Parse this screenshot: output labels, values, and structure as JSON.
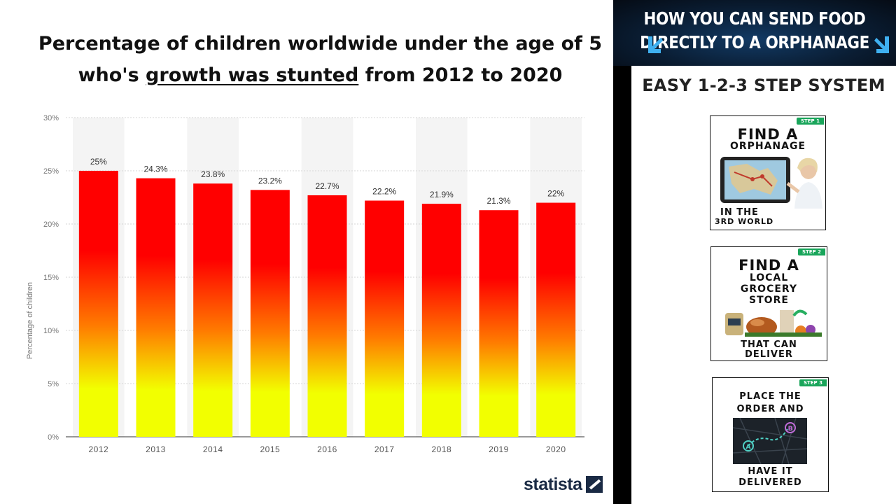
{
  "chart_data": {
    "type": "bar",
    "title_parts": [
      {
        "text": "Percentage of children worldwide under the age of 5",
        "underline": false,
        "br": true
      },
      {
        "text": "who's ",
        "underline": false
      },
      {
        "text": "growth was stunted",
        "underline": true
      },
      {
        "text": " from 2012 to 2020",
        "underline": false
      }
    ],
    "categories": [
      "2012",
      "2013",
      "2014",
      "2015",
      "2016",
      "2017",
      "2018",
      "2019",
      "2020"
    ],
    "values": [
      25,
      24.3,
      23.8,
      23.2,
      22.7,
      22.2,
      21.9,
      21.3,
      22
    ],
    "data_labels": [
      "25%",
      "24.3%",
      "23.8%",
      "23.2%",
      "22.7%",
      "22.2%",
      "21.9%",
      "21.3%",
      "22%"
    ],
    "ylabel": "Percentage of children",
    "xlabel": "",
    "ylim": [
      0,
      30
    ],
    "yticks": [
      0,
      5,
      10,
      15,
      20,
      25,
      30
    ],
    "ytick_labels": [
      "0%",
      "5%",
      "10%",
      "15%",
      "20%",
      "25%",
      "30%"
    ],
    "grid": true,
    "bar_gradient": {
      "top": "#ff0000",
      "middle": "#ff7a00",
      "bottom": "#f2ff00"
    },
    "source_logo": "statista"
  },
  "side_panel": {
    "header_line1": "HOW YOU CAN SEND FOOD",
    "header_line2": "DIRECTLY TO A ORPHANAGE",
    "subtitle": "EASY 1-2-3 STEP SYSTEM",
    "accent_color": "#19a55a",
    "steps": [
      {
        "tag": "STEP 1",
        "line1": "Find a",
        "line2": "orphanage",
        "line3": "in the",
        "line4": "3rd world",
        "illustration": "tablet-map-woman"
      },
      {
        "tag": "STEP 2",
        "line1": "Find a",
        "line2": "local",
        "line3": "grocery",
        "line4": "store",
        "line5": "that can",
        "line6": "deliver",
        "illustration": "groceries"
      },
      {
        "tag": "STEP 3",
        "line1": "Place the",
        "line2": "order and",
        "line3": "have it",
        "line4": "delivered",
        "illustration": "route-map-a-b"
      }
    ]
  }
}
